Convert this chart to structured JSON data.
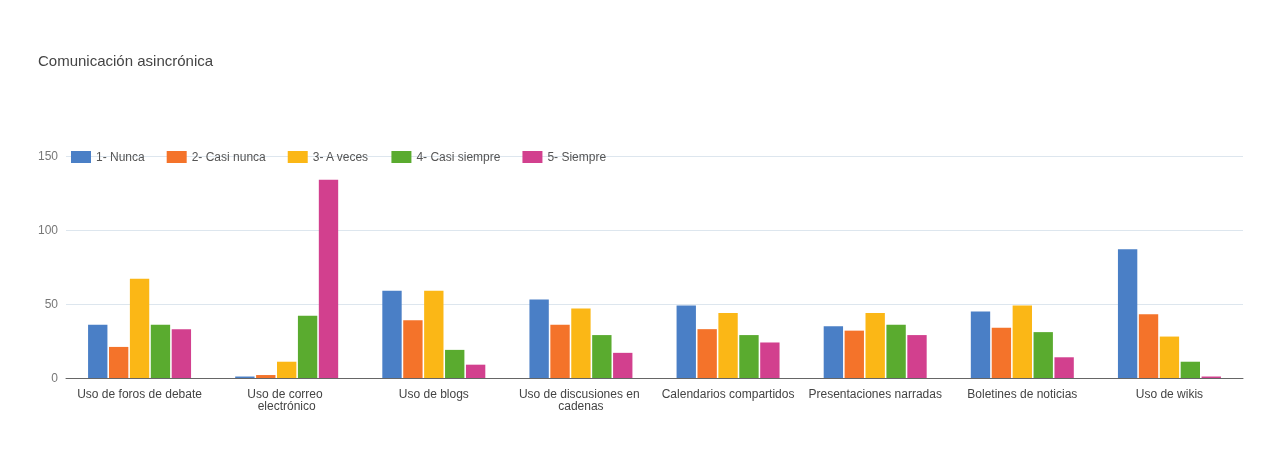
{
  "chart_data": {
    "type": "bar",
    "title": "Comunicación asincrónica",
    "categories": [
      "Uso de foros de debate",
      "Uso de correo electrónico",
      "Uso de blogs",
      "Uso de discusiones en cadenas",
      "Calendarios compartidos",
      "Presentaciones narradas",
      "Boletines de noticias",
      "Uso de wikis"
    ],
    "series": [
      {
        "name": "1- Nunca",
        "color": "#4a7fc6",
        "values": [
          36,
          1,
          59,
          53,
          49,
          35,
          45,
          87
        ]
      },
      {
        "name": "2- Casi nunca",
        "color": "#f4732a",
        "values": [
          21,
          2,
          39,
          36,
          33,
          32,
          34,
          43
        ]
      },
      {
        "name": "3- A veces",
        "color": "#fbb716",
        "values": [
          67,
          11,
          59,
          47,
          44,
          44,
          49,
          28
        ]
      },
      {
        "name": "4- Casi siempre",
        "color": "#5aab2f",
        "values": [
          36,
          42,
          19,
          29,
          29,
          36,
          31,
          11
        ]
      },
      {
        "name": "5- Siempre",
        "color": "#d2408e",
        "values": [
          33,
          134,
          9,
          17,
          24,
          29,
          14,
          1
        ]
      }
    ],
    "ylim": [
      0,
      150
    ],
    "yticks": [
      0,
      50,
      100,
      150
    ],
    "grid": "y",
    "legend": "top left"
  }
}
